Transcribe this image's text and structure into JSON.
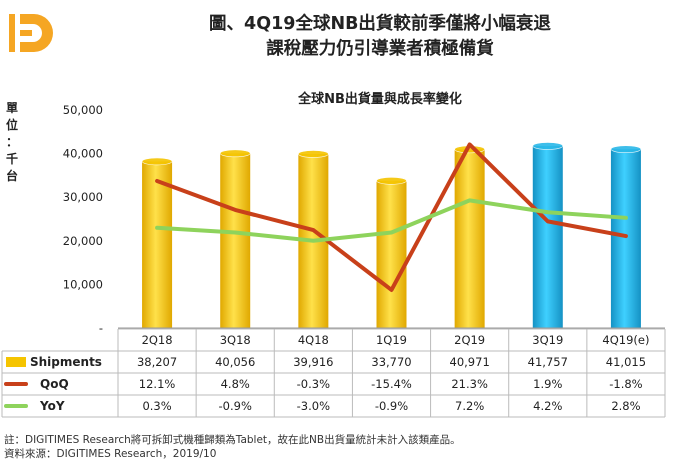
{
  "header": {
    "title_line1": "圖、4Q19全球NB出貨較前季僅將小幅衰退",
    "title_line2": "課稅壓力仍引導業者積極備貨"
  },
  "logo": {
    "icon": "digitimes-logo-icon",
    "color": "#f5a623"
  },
  "chart_data": {
    "type": "bar",
    "title": "全球NB出貨量與成長率變化",
    "ylabel": "單位：千台",
    "unit_chars": [
      "單",
      "位",
      "：",
      "千",
      "台"
    ],
    "categories": [
      "2Q18",
      "3Q18",
      "4Q18",
      "1Q19",
      "2Q19",
      "3Q19",
      "4Q19(e)"
    ],
    "ylim": [
      0,
      50000
    ],
    "yticks": [
      0,
      10000,
      20000,
      30000,
      40000,
      50000
    ],
    "ytick_labels": [
      "-",
      "10,000",
      "20,000",
      "30,000",
      "40,000",
      "50,000"
    ],
    "grid": false,
    "bar_colors": [
      "#f5c400",
      "#f5c400",
      "#f5c400",
      "#f5c400",
      "#f5c400",
      "#2ab8e8",
      "#2ab8e8"
    ],
    "series": [
      {
        "name": "Shipments",
        "kind": "bar",
        "color": "#f5c400",
        "values": [
          38207,
          40056,
          39916,
          33770,
          40971,
          41757,
          41015
        ],
        "labels": [
          "38,207",
          "40,056",
          "39,916",
          "33,770",
          "40,971",
          "41,757",
          "41,015"
        ]
      },
      {
        "name": "QoQ",
        "kind": "line",
        "color": "#c8401a",
        "values": [
          12.1,
          4.8,
          -0.3,
          -15.4,
          21.3,
          1.9,
          -1.8
        ],
        "labels": [
          "12.1%",
          "4.8%",
          "-0.3%",
          "-15.4%",
          "21.3%",
          "1.9%",
          "-1.8%"
        ]
      },
      {
        "name": "YoY",
        "kind": "line",
        "color": "#8ed35c",
        "values": [
          0.3,
          -0.9,
          -3.0,
          -0.9,
          7.2,
          4.2,
          2.8
        ],
        "labels": [
          "0.3%",
          "-0.9%",
          "-3.0%",
          "-0.9%",
          "7.2%",
          "4.2%",
          "2.8%"
        ]
      }
    ]
  },
  "footnote": {
    "line1": "註：DIGITIMES Research將可拆卸式機種歸類為Tablet，故在此NB出貨量統計未計入該類產品。",
    "line2": "資料來源：DIGITIMES Research，2019/10"
  }
}
